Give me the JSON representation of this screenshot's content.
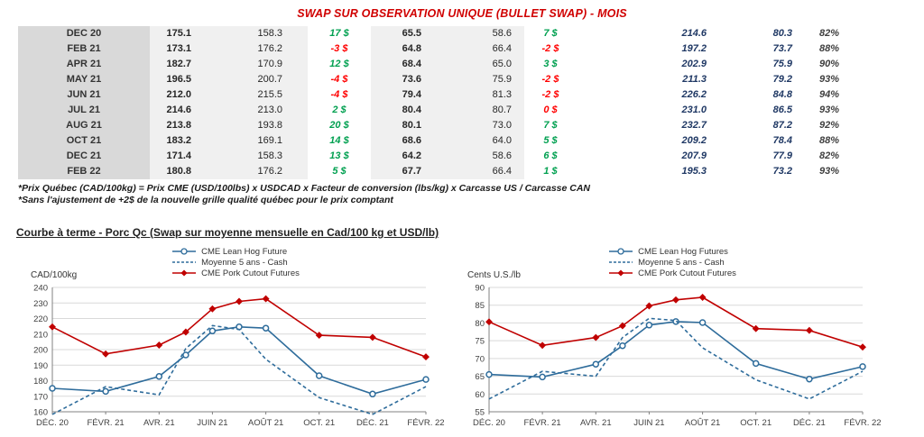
{
  "title": "SWAP SUR OBSERVATION UNIQUE (BULLET SWAP) - MOIS",
  "colors": {
    "title_red": "#D00000",
    "positive_green": "#00A050",
    "negative_red": "#FF0000",
    "navy_values": "#1F3864",
    "series_blue": "#2E6C9B",
    "series_red": "#C00000"
  },
  "table": {
    "rows": [
      {
        "month": "DEC 20",
        "qc_price": "175.1",
        "avg_cash": "158.3",
        "diff": "17 $",
        "diff_sign": "pos",
        "us_price": "65.5",
        "us_avg": "58.6",
        "us_diff": "7 $",
        "us_diff_sign": "pos",
        "cutout_cad": "214.6",
        "cutout_us": "80.3",
        "ratio": "82%"
      },
      {
        "month": "FEB 21",
        "qc_price": "173.1",
        "avg_cash": "176.2",
        "diff": "-3 $",
        "diff_sign": "neg",
        "us_price": "64.8",
        "us_avg": "66.4",
        "us_diff": "-2 $",
        "us_diff_sign": "neg",
        "cutout_cad": "197.2",
        "cutout_us": "73.7",
        "ratio": "88%"
      },
      {
        "month": "APR 21",
        "qc_price": "182.7",
        "avg_cash": "170.9",
        "diff": "12 $",
        "diff_sign": "pos",
        "us_price": "68.4",
        "us_avg": "65.0",
        "us_diff": "3 $",
        "us_diff_sign": "pos",
        "cutout_cad": "202.9",
        "cutout_us": "75.9",
        "ratio": "90%"
      },
      {
        "month": "MAY 21",
        "qc_price": "196.5",
        "avg_cash": "200.7",
        "diff": "-4 $",
        "diff_sign": "neg",
        "us_price": "73.6",
        "us_avg": "75.9",
        "us_diff": "-2 $",
        "us_diff_sign": "neg",
        "cutout_cad": "211.3",
        "cutout_us": "79.2",
        "ratio": "93%"
      },
      {
        "month": "JUN 21",
        "qc_price": "212.0",
        "avg_cash": "215.5",
        "diff": "-4 $",
        "diff_sign": "neg",
        "us_price": "79.4",
        "us_avg": "81.3",
        "us_diff": "-2 $",
        "us_diff_sign": "neg",
        "cutout_cad": "226.2",
        "cutout_us": "84.8",
        "ratio": "94%"
      },
      {
        "month": "JUL 21",
        "qc_price": "214.6",
        "avg_cash": "213.0",
        "diff": "2 $",
        "diff_sign": "pos",
        "us_price": "80.4",
        "us_avg": "80.7",
        "us_diff": "0 $",
        "us_diff_sign": "neg",
        "cutout_cad": "231.0",
        "cutout_us": "86.5",
        "ratio": "93%"
      },
      {
        "month": "AUG 21",
        "qc_price": "213.8",
        "avg_cash": "193.8",
        "diff": "20 $",
        "diff_sign": "pos",
        "us_price": "80.1",
        "us_avg": "73.0",
        "us_diff": "7 $",
        "us_diff_sign": "pos",
        "cutout_cad": "232.7",
        "cutout_us": "87.2",
        "ratio": "92%"
      },
      {
        "month": "OCT 21",
        "qc_price": "183.2",
        "avg_cash": "169.1",
        "diff": "14 $",
        "diff_sign": "pos",
        "us_price": "68.6",
        "us_avg": "64.0",
        "us_diff": "5 $",
        "us_diff_sign": "pos",
        "cutout_cad": "209.2",
        "cutout_us": "78.4",
        "ratio": "88%"
      },
      {
        "month": "DEC 21",
        "qc_price": "171.4",
        "avg_cash": "158.3",
        "diff": "13 $",
        "diff_sign": "pos",
        "us_price": "64.2",
        "us_avg": "58.6",
        "us_diff": "6 $",
        "us_diff_sign": "pos",
        "cutout_cad": "207.9",
        "cutout_us": "77.9",
        "ratio": "82%"
      },
      {
        "month": "FEB 22",
        "qc_price": "180.8",
        "avg_cash": "176.2",
        "diff": "5 $",
        "diff_sign": "pos",
        "us_price": "67.7",
        "us_avg": "66.4",
        "us_diff": "1 $",
        "us_diff_sign": "pos",
        "cutout_cad": "195.3",
        "cutout_us": "73.2",
        "ratio": "93%"
      }
    ]
  },
  "footnotes": [
    "*Prix Québec (CAD/100kg) = Prix CME (USD/100lbs) x USDCAD x Facteur de conversion (lbs/kg) x Carcasse US / Carcasse CAN",
    "*Sans l'ajustement de +2$ de la nouvelle grille qualité québec pour le prix comptant"
  ],
  "section_title": "Courbe à terme - Porc Qc (Swap sur moyenne mensuelle en Cad/100 kg et USD/lb)",
  "chart_data": [
    {
      "type": "line",
      "ylabel": "CAD/100kg",
      "ylim": [
        160,
        240
      ],
      "ytick_step": 10,
      "grid": true,
      "legend_position": "top",
      "x_tick_labels": [
        "DÉC. 20",
        "FÉVR. 21",
        "AVR. 21",
        "JUIN 21",
        "AOÛT 21",
        "OCT. 21",
        "DÉC. 21",
        "FÉVR. 22"
      ],
      "x_tick_positions": [
        0,
        2,
        4,
        6,
        8,
        10,
        12,
        14
      ],
      "x_months": [
        "DEC 20",
        "FEB 21",
        "APR 21",
        "MAY 21",
        "JUN 21",
        "JUL 21",
        "AUG 21",
        "OCT 21",
        "DEC 21",
        "FEB 22"
      ],
      "x_positions": [
        0,
        2,
        4,
        5,
        6,
        7,
        8,
        10,
        12,
        14
      ],
      "xmax": 14,
      "series": [
        {
          "name": "CME Lean Hog Future",
          "style": "solid-circle",
          "color": "#2E6C9B",
          "values": [
            175.1,
            173.1,
            182.7,
            196.5,
            212.0,
            214.6,
            213.8,
            183.2,
            171.4,
            180.8
          ]
        },
        {
          "name": "Moyenne 5 ans - Cash",
          "style": "dashed",
          "color": "#2E6C9B",
          "values": [
            158.3,
            176.2,
            170.9,
            200.7,
            215.5,
            213.0,
            193.8,
            169.1,
            158.3,
            176.2
          ]
        },
        {
          "name": "CME Pork Cutout Futures",
          "style": "solid-diamond",
          "color": "#C00000",
          "values": [
            214.6,
            197.2,
            202.9,
            211.3,
            226.2,
            231.0,
            232.7,
            209.2,
            207.9,
            195.3
          ]
        }
      ]
    },
    {
      "type": "line",
      "ylabel": "Cents U.S./lb",
      "ylim": [
        55,
        90
      ],
      "ytick_step": 5,
      "grid": true,
      "legend_position": "top",
      "x_tick_labels": [
        "DÉC. 20",
        "FÉVR. 21",
        "AVR. 21",
        "JUIN 21",
        "AOÛT 21",
        "OCT. 21",
        "DÉC. 21",
        "FÉVR. 22"
      ],
      "x_tick_positions": [
        0,
        2,
        4,
        6,
        8,
        10,
        12,
        14
      ],
      "x_months": [
        "DEC 20",
        "FEB 21",
        "APR 21",
        "MAY 21",
        "JUN 21",
        "JUL 21",
        "AUG 21",
        "OCT 21",
        "DEC 21",
        "FEB 22"
      ],
      "x_positions": [
        0,
        2,
        4,
        5,
        6,
        7,
        8,
        10,
        12,
        14
      ],
      "xmax": 14,
      "series": [
        {
          "name": "CME Lean Hog Futures",
          "style": "solid-circle",
          "color": "#2E6C9B",
          "values": [
            65.5,
            64.8,
            68.4,
            73.6,
            79.4,
            80.4,
            80.1,
            68.6,
            64.2,
            67.7
          ]
        },
        {
          "name": "Moyenne 5 ans - Cash",
          "style": "dashed",
          "color": "#2E6C9B",
          "values": [
            58.6,
            66.4,
            65.0,
            75.9,
            81.3,
            80.7,
            73.0,
            64.0,
            58.6,
            66.4
          ]
        },
        {
          "name": "CME Pork Cutout Futures",
          "style": "solid-diamond",
          "color": "#C00000",
          "values": [
            80.3,
            73.7,
            75.9,
            79.2,
            84.8,
            86.5,
            87.2,
            78.4,
            77.9,
            73.2
          ]
        }
      ]
    }
  ]
}
